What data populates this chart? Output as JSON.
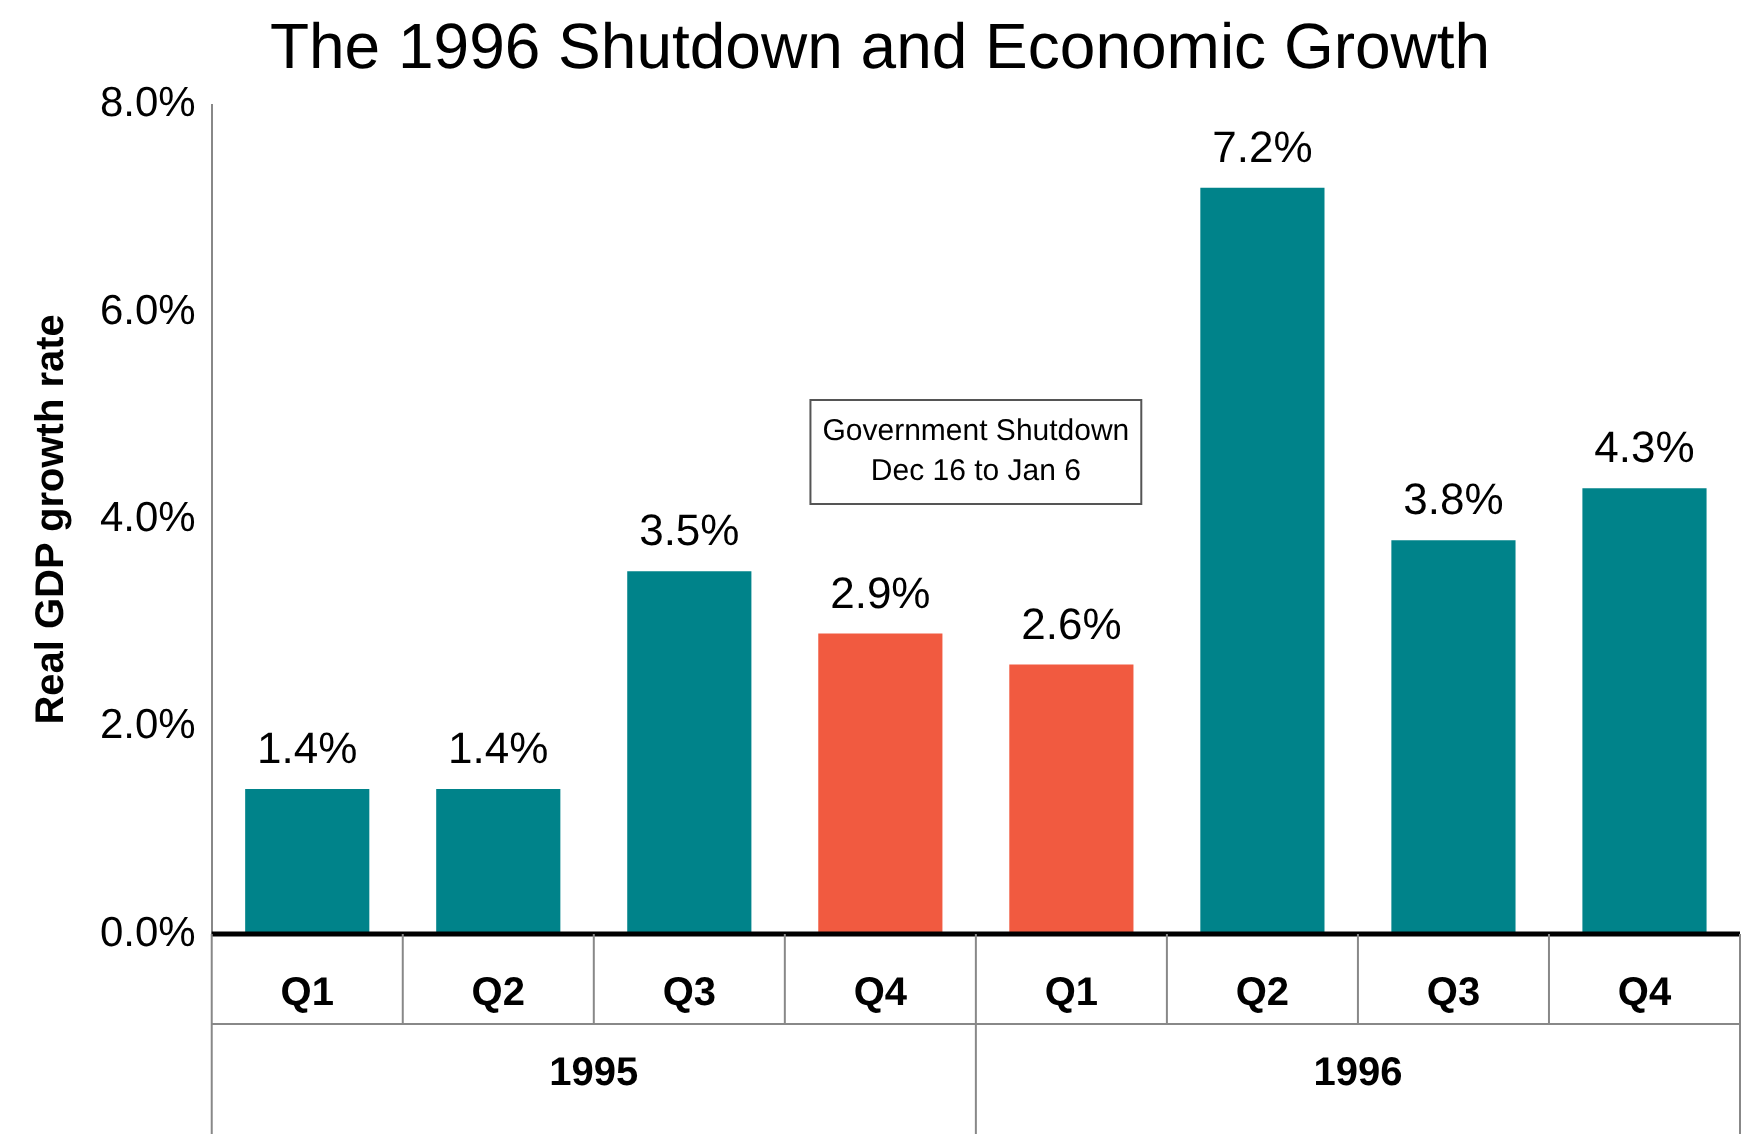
{
  "chart_data": {
    "type": "bar",
    "title": "The 1996 Shutdown and Economic Growth",
    "ylabel": "Real GDP growth rate",
    "categories": [
      "Q1",
      "Q2",
      "Q3",
      "Q4",
      "Q1",
      "Q2",
      "Q3",
      "Q4"
    ],
    "values": [
      1.4,
      1.4,
      3.5,
      2.9,
      2.6,
      7.2,
      3.8,
      4.3
    ],
    "value_labels": [
      "1.4%",
      "1.4%",
      "3.5%",
      "2.9%",
      "2.6%",
      "7.2%",
      "3.8%",
      "4.3%"
    ],
    "colors": [
      "#00838a",
      "#00838a",
      "#00838a",
      "#f15a40",
      "#f15a40",
      "#00838a",
      "#00838a",
      "#00838a"
    ],
    "ylim": [
      0,
      8
    ],
    "yticks": [
      {
        "value": 0,
        "label": "0.0%"
      },
      {
        "value": 2,
        "label": "2.0%"
      },
      {
        "value": 4,
        "label": "4.0%"
      },
      {
        "value": 6,
        "label": "6.0%"
      },
      {
        "value": 8,
        "label": "8.0%"
      }
    ],
    "annotations": [
      "Government Shutdown\nDec 16 to Jan 6",
      "1995",
      "1996"
    ],
    "grid": false,
    "legend": false
  }
}
